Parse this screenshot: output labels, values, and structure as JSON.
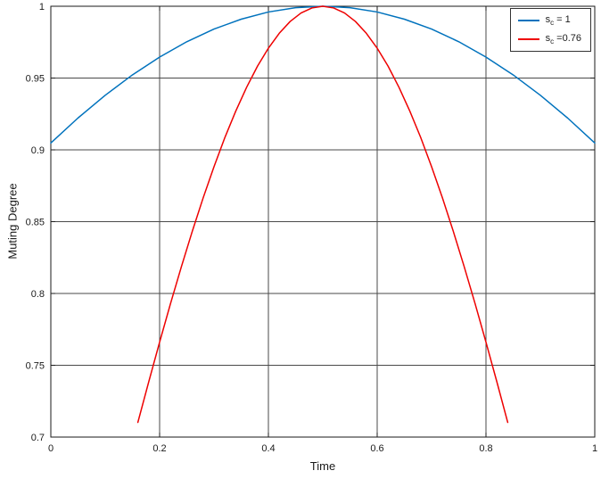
{
  "chart_data": {
    "type": "line",
    "title": "",
    "xlabel": "Time",
    "ylabel": "Muting Degree",
    "xlim": [
      0,
      1
    ],
    "ylim": [
      0.7,
      1
    ],
    "grid": true,
    "legend_position": "top-right",
    "xticks": [
      0,
      0.2,
      0.4,
      0.6,
      0.8,
      1
    ],
    "xtick_labels": [
      "0",
      "0.2",
      "0.4",
      "0.6",
      "0.8",
      "1"
    ],
    "yticks": [
      0.7,
      0.75,
      0.8,
      0.85,
      0.9,
      0.95,
      1
    ],
    "ytick_labels": [
      "0.7",
      "0.75",
      "0.8",
      "0.85",
      "0.9",
      "0.95",
      "1"
    ],
    "colors": {
      "background": "#ffffff",
      "axis": "#1a1a1a",
      "grid": "#4a4a4a",
      "series1": "#0072bd",
      "series2": "#ee0000"
    },
    "series": [
      {
        "name": "s_c = 1",
        "label_base": "s",
        "label_sub": "c",
        "label_suffix": " = 1",
        "color": "#0072bd",
        "x": [
          0,
          0.05,
          0.1,
          0.15,
          0.2,
          0.25,
          0.3,
          0.35,
          0.4,
          0.45,
          0.5,
          0.55,
          0.6,
          0.65,
          0.7,
          0.75,
          0.8,
          0.85,
          0.9,
          0.95,
          1
        ],
        "y": [
          0.9048,
          0.9222,
          0.938,
          0.9522,
          0.9646,
          0.9753,
          0.9841,
          0.991,
          0.996,
          0.999,
          1.0,
          0.999,
          0.996,
          0.991,
          0.9841,
          0.9753,
          0.9646,
          0.9522,
          0.938,
          0.9222,
          0.9048
        ]
      },
      {
        "name": "s_c =0.76",
        "label_base": "s",
        "label_sub": "c",
        "label_suffix": " =0.76",
        "color": "#ee0000",
        "x": [
          0.16,
          0.18,
          0.2,
          0.22,
          0.24,
          0.26,
          0.28,
          0.3,
          0.32,
          0.34,
          0.36,
          0.38,
          0.4,
          0.42,
          0.44,
          0.46,
          0.48,
          0.5,
          0.52,
          0.54,
          0.56,
          0.58,
          0.6,
          0.62,
          0.64,
          0.66,
          0.68,
          0.7,
          0.72,
          0.74,
          0.76,
          0.78,
          0.8,
          0.82,
          0.84
        ],
        "y": [
          0.7102,
          0.7385,
          0.7661,
          0.7929,
          0.8186,
          0.8432,
          0.8665,
          0.8883,
          0.9086,
          0.927,
          0.9436,
          0.9583,
          0.9708,
          0.9812,
          0.9894,
          0.9953,
          0.9988,
          1.0,
          0.9988,
          0.9953,
          0.9894,
          0.9812,
          0.9708,
          0.9583,
          0.9436,
          0.927,
          0.9086,
          0.8883,
          0.8665,
          0.8432,
          0.8186,
          0.7929,
          0.7661,
          0.7385,
          0.7102
        ]
      }
    ]
  }
}
